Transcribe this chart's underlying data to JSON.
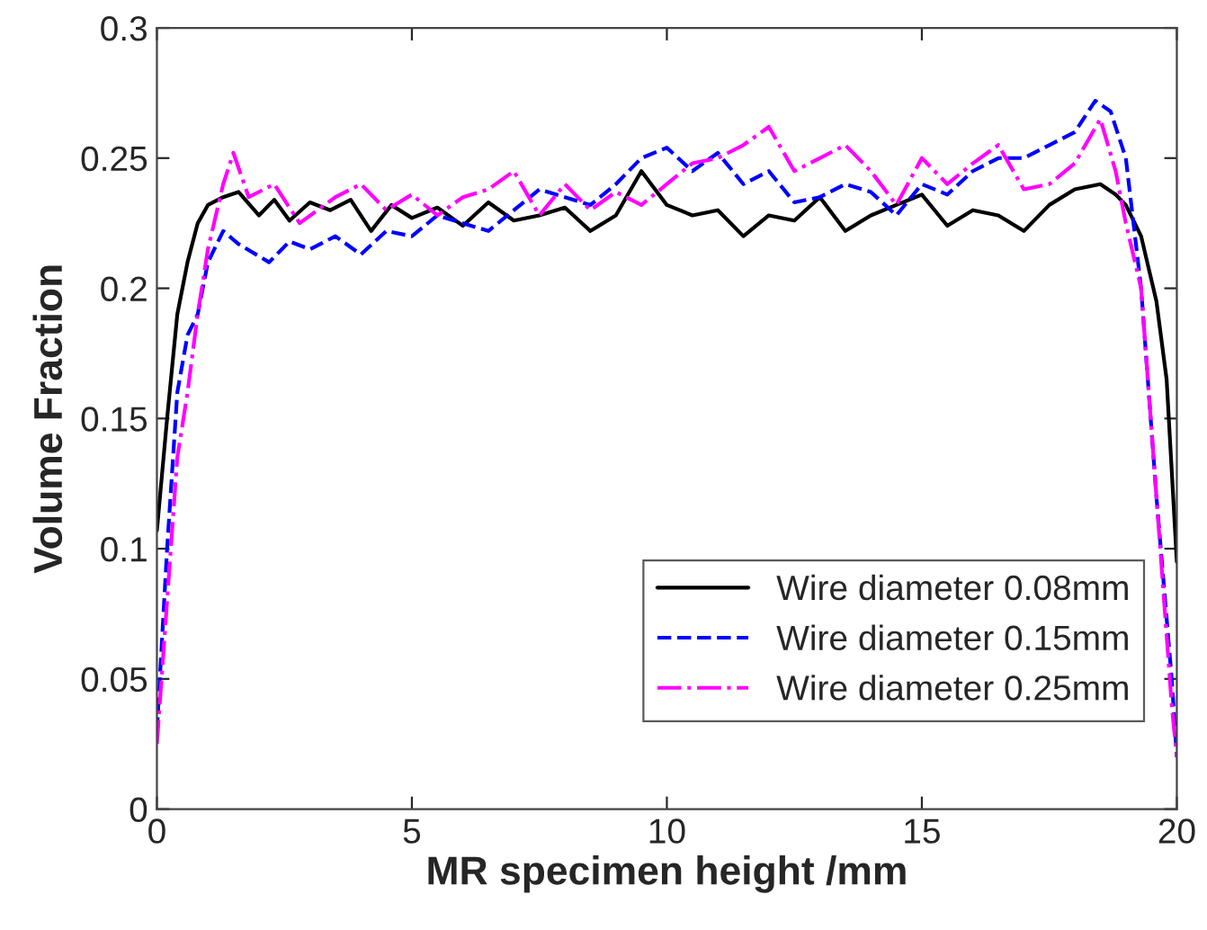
{
  "chart_data": {
    "type": "line",
    "xlabel": "MR specimen height /mm",
    "ylabel": "Volume Fraction",
    "xlim": [
      0,
      20
    ],
    "ylim": [
      0,
      0.3
    ],
    "xticks": [
      0,
      5,
      10,
      15,
      20
    ],
    "yticks": [
      0,
      0.05,
      0.1,
      0.15,
      0.2,
      0.25,
      0.3
    ],
    "grid": false,
    "legend": "bottom right",
    "series": [
      {
        "name": "Wire diameter 0.08mm",
        "color": "#000000",
        "line_style": "solid",
        "x": [
          0,
          0.2,
          0.4,
          0.6,
          0.8,
          1.0,
          1.3,
          1.6,
          2.0,
          2.3,
          2.6,
          3.0,
          3.4,
          3.8,
          4.2,
          4.6,
          5.0,
          5.5,
          6.0,
          6.5,
          7.0,
          7.5,
          8.0,
          8.5,
          9.0,
          9.5,
          10.0,
          10.5,
          11.0,
          11.5,
          12.0,
          12.5,
          13.0,
          13.5,
          14.0,
          14.5,
          15.0,
          15.5,
          16.0,
          16.5,
          17.0,
          17.5,
          18.0,
          18.5,
          18.8,
          19.0,
          19.3,
          19.6,
          19.8,
          20.0
        ],
        "values": [
          0.107,
          0.15,
          0.19,
          0.21,
          0.225,
          0.232,
          0.235,
          0.237,
          0.228,
          0.234,
          0.226,
          0.233,
          0.23,
          0.234,
          0.222,
          0.232,
          0.227,
          0.231,
          0.224,
          0.233,
          0.226,
          0.228,
          0.231,
          0.222,
          0.228,
          0.245,
          0.232,
          0.228,
          0.23,
          0.22,
          0.228,
          0.226,
          0.235,
          0.222,
          0.228,
          0.232,
          0.236,
          0.224,
          0.23,
          0.228,
          0.222,
          0.232,
          0.238,
          0.24,
          0.236,
          0.232,
          0.22,
          0.195,
          0.165,
          0.095
        ]
      },
      {
        "name": "Wire diameter 0.15mm",
        "color": "#0000ff",
        "line_style": "dashed",
        "x": [
          0,
          0.2,
          0.4,
          0.6,
          0.8,
          1.0,
          1.3,
          1.6,
          2.2,
          2.6,
          3.0,
          3.5,
          4.0,
          4.5,
          5.0,
          5.5,
          6.0,
          6.5,
          7.0,
          7.5,
          8.0,
          8.5,
          9.0,
          9.5,
          10.0,
          10.5,
          11.0,
          11.5,
          12.0,
          12.5,
          13.0,
          13.5,
          14.0,
          14.5,
          15.0,
          15.5,
          16.0,
          16.5,
          17.0,
          17.5,
          18.0,
          18.4,
          18.7,
          19.0,
          19.3,
          19.6,
          19.9,
          20.0
        ],
        "values": [
          0.03,
          0.1,
          0.16,
          0.182,
          0.19,
          0.21,
          0.222,
          0.217,
          0.21,
          0.218,
          0.215,
          0.22,
          0.213,
          0.222,
          0.22,
          0.228,
          0.225,
          0.222,
          0.23,
          0.238,
          0.235,
          0.232,
          0.24,
          0.25,
          0.254,
          0.245,
          0.252,
          0.24,
          0.245,
          0.233,
          0.235,
          0.24,
          0.237,
          0.228,
          0.24,
          0.236,
          0.245,
          0.25,
          0.25,
          0.255,
          0.26,
          0.272,
          0.268,
          0.25,
          0.2,
          0.12,
          0.05,
          0.02
        ]
      },
      {
        "name": "Wire diameter 0.25mm",
        "color": "#ff00ff",
        "line_style": "dashdot",
        "x": [
          0,
          0.2,
          0.4,
          0.6,
          0.8,
          1.0,
          1.3,
          1.5,
          1.8,
          2.3,
          2.8,
          3.5,
          4.0,
          4.5,
          5.0,
          5.5,
          6.0,
          6.5,
          7.0,
          7.5,
          8.0,
          8.5,
          9.0,
          9.5,
          10.0,
          10.5,
          11.0,
          11.5,
          12.0,
          12.5,
          13.0,
          13.5,
          14.0,
          14.5,
          15.0,
          15.5,
          16.0,
          16.5,
          17.0,
          17.5,
          18.0,
          18.5,
          18.8,
          19.0,
          19.3,
          19.6,
          19.9,
          20.0
        ],
        "values": [
          0.025,
          0.08,
          0.135,
          0.16,
          0.19,
          0.215,
          0.24,
          0.252,
          0.235,
          0.24,
          0.225,
          0.235,
          0.24,
          0.23,
          0.236,
          0.228,
          0.235,
          0.238,
          0.245,
          0.228,
          0.24,
          0.23,
          0.237,
          0.232,
          0.24,
          0.248,
          0.25,
          0.255,
          0.262,
          0.245,
          0.25,
          0.255,
          0.245,
          0.232,
          0.25,
          0.24,
          0.248,
          0.255,
          0.238,
          0.24,
          0.248,
          0.265,
          0.245,
          0.225,
          0.2,
          0.12,
          0.04,
          0.02
        ]
      }
    ]
  }
}
